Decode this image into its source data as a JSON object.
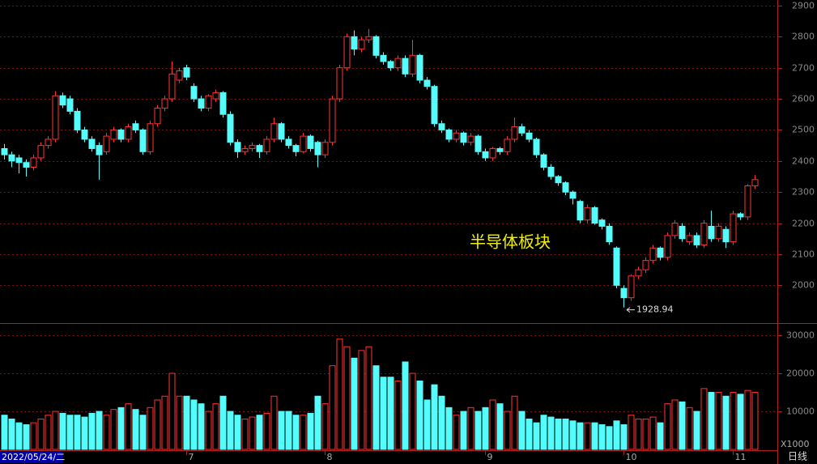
{
  "chart_data": {
    "type": "candlestick",
    "annotation": "半导体板块",
    "low_label": "1928.94",
    "volume_unit": "X1000",
    "period": "日线",
    "up_color": "#ff3232",
    "down_color": "#54fcfc",
    "grid": true,
    "categories": [
      "2022/05/24/二",
      null,
      null,
      null,
      null,
      null,
      null,
      null,
      null,
      null,
      null,
      null,
      null,
      null,
      null,
      null,
      null,
      null,
      null,
      null,
      null,
      null,
      null,
      null,
      null,
      "7",
      null,
      null,
      null,
      null,
      null,
      null,
      null,
      null,
      null,
      null,
      null,
      null,
      null,
      null,
      null,
      null,
      null,
      null,
      "8",
      null,
      null,
      null,
      null,
      null,
      null,
      null,
      null,
      null,
      null,
      null,
      null,
      null,
      null,
      null,
      null,
      null,
      null,
      null,
      null,
      null,
      "9",
      null,
      null,
      null,
      null,
      null,
      null,
      null,
      null,
      null,
      null,
      null,
      null,
      null,
      null,
      null,
      null,
      null,
      null,
      "10",
      null,
      null,
      null,
      null,
      null,
      null,
      null,
      null,
      null,
      null,
      null,
      null,
      null,
      null,
      "11",
      null,
      null,
      null
    ],
    "open": [
      2440,
      2420,
      2410,
      2395,
      2380,
      2410,
      2450,
      2470,
      2610,
      2600,
      2560,
      2500,
      2470,
      2450,
      2430,
      2470,
      2500,
      2470,
      2520,
      2500,
      2430,
      2520,
      2570,
      2600,
      2660,
      2700,
      2640,
      2600,
      2570,
      2600,
      2620,
      2550,
      2460,
      2430,
      2440,
      2450,
      2430,
      2470,
      2520,
      2470,
      2450,
      2430,
      2480,
      2460,
      2420,
      2460,
      2600,
      2700,
      2800,
      2760,
      2790,
      2800,
      2740,
      2720,
      2700,
      2730,
      2680,
      2740,
      2660,
      2640,
      2520,
      2500,
      2470,
      2490,
      2460,
      2480,
      2430,
      2410,
      2440,
      2430,
      2470,
      2510,
      2490,
      2470,
      2420,
      2380,
      2350,
      2330,
      2300,
      2270,
      2210,
      2250,
      2210,
      2190,
      2120,
      1990,
      1960,
      2030,
      2050,
      2080,
      2120,
      2090,
      2160,
      2190,
      2140,
      2160,
      2130,
      2190,
      2150,
      2180,
      2140,
      2230,
      2220,
      2320
    ],
    "high": [
      2455,
      2430,
      2420,
      2405,
      2420,
      2460,
      2480,
      2625,
      2620,
      2610,
      2570,
      2510,
      2480,
      2460,
      2490,
      2510,
      2505,
      2520,
      2530,
      2505,
      2530,
      2580,
      2610,
      2720,
      2700,
      2710,
      2650,
      2610,
      2615,
      2630,
      2625,
      2560,
      2470,
      2450,
      2460,
      2455,
      2480,
      2540,
      2525,
      2480,
      2455,
      2490,
      2485,
      2465,
      2470,
      2610,
      2710,
      2810,
      2820,
      2800,
      2825,
      2805,
      2750,
      2725,
      2740,
      2740,
      2790,
      2745,
      2670,
      2645,
      2530,
      2505,
      2500,
      2495,
      2490,
      2485,
      2440,
      2445,
      2445,
      2480,
      2540,
      2520,
      2500,
      2475,
      2425,
      2390,
      2355,
      2335,
      2305,
      2275,
      2260,
      2255,
      2215,
      2200,
      2125,
      2000,
      2035,
      2060,
      2090,
      2130,
      2125,
      2170,
      2210,
      2200,
      2170,
      2170,
      2210,
      2240,
      2200,
      2190,
      2240,
      2235,
      2325,
      2355
    ],
    "low": [
      2405,
      2380,
      2360,
      2350,
      2370,
      2400,
      2440,
      2460,
      2570,
      2550,
      2490,
      2460,
      2430,
      2340,
      2420,
      2460,
      2460,
      2460,
      2490,
      2420,
      2420,
      2510,
      2560,
      2590,
      2650,
      2660,
      2590,
      2560,
      2560,
      2590,
      2540,
      2450,
      2410,
      2420,
      2430,
      2410,
      2420,
      2460,
      2460,
      2440,
      2415,
      2425,
      2430,
      2380,
      2410,
      2450,
      2590,
      2690,
      2740,
      2750,
      2780,
      2730,
      2710,
      2690,
      2690,
      2670,
      2670,
      2650,
      2630,
      2510,
      2490,
      2460,
      2460,
      2450,
      2450,
      2420,
      2400,
      2400,
      2420,
      2420,
      2460,
      2480,
      2460,
      2410,
      2370,
      2340,
      2320,
      2290,
      2260,
      2200,
      2200,
      2195,
      2180,
      2130,
      1990,
      1928.94,
      1950,
      2020,
      2040,
      2070,
      2080,
      2080,
      2150,
      2140,
      2130,
      2120,
      2120,
      2140,
      2140,
      2120,
      2130,
      2210,
      2210,
      2310
    ],
    "close": [
      2420,
      2400,
      2395,
      2380,
      2410,
      2450,
      2470,
      2610,
      2580,
      2560,
      2500,
      2470,
      2440,
      2420,
      2480,
      2500,
      2470,
      2510,
      2500,
      2430,
      2520,
      2570,
      2600,
      2680,
      2690,
      2670,
      2600,
      2570,
      2610,
      2620,
      2550,
      2460,
      2430,
      2440,
      2450,
      2430,
      2470,
      2520,
      2470,
      2450,
      2430,
      2480,
      2440,
      2420,
      2460,
      2600,
      2700,
      2800,
      2760,
      2790,
      2800,
      2740,
      2720,
      2700,
      2730,
      2680,
      2740,
      2660,
      2640,
      2520,
      2500,
      2470,
      2490,
      2460,
      2480,
      2430,
      2410,
      2440,
      2430,
      2470,
      2510,
      2490,
      2470,
      2420,
      2380,
      2350,
      2330,
      2300,
      2280,
      2210,
      2250,
      2200,
      2190,
      2140,
      2000,
      1960,
      2030,
      2050,
      2080,
      2120,
      2090,
      2160,
      2200,
      2150,
      2160,
      2130,
      2200,
      2150,
      2190,
      2140,
      2230,
      2220,
      2320,
      2340
    ],
    "volume": [
      9000,
      8000,
      7000,
      6500,
      7000,
      8000,
      9000,
      10000,
      9500,
      9000,
      9000,
      8500,
      9500,
      10000,
      9000,
      10500,
      11000,
      12000,
      10500,
      9000,
      11000,
      13000,
      14000,
      20000,
      14000,
      14000,
      13000,
      12000,
      10000,
      12000,
      14000,
      10000,
      9000,
      8000,
      8500,
      9000,
      9500,
      14000,
      10000,
      10000,
      9000,
      9000,
      9500,
      14000,
      12000,
      22000,
      29000,
      27000,
      24000,
      26000,
      27000,
      22000,
      19000,
      19000,
      18000,
      23000,
      20000,
      18000,
      13000,
      17000,
      14000,
      11000,
      9000,
      10000,
      11000,
      10000,
      11000,
      13000,
      12000,
      10000,
      14000,
      10000,
      8000,
      7000,
      9000,
      8500,
      8000,
      8000,
      7500,
      7000,
      7000,
      7000,
      6500,
      6000,
      7500,
      6500,
      9000,
      8000,
      8000,
      8500,
      7000,
      12000,
      13000,
      12500,
      11000,
      10000,
      16000,
      15000,
      15000,
      14000,
      15000,
      14500,
      15500,
      15000
    ],
    "ylim": [
      1881,
      2918
    ],
    "yticks": [
      2000,
      2100,
      2200,
      2300,
      2400,
      2500,
      2600,
      2700,
      2800,
      2900
    ],
    "y2lim": [
      0,
      33000
    ],
    "y2ticks": [
      10000,
      20000,
      30000
    ]
  }
}
